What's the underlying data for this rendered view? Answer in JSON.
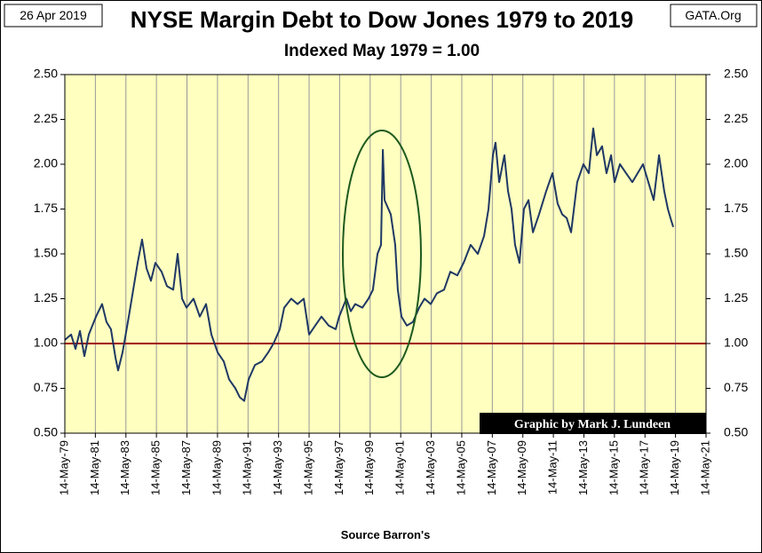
{
  "chart_data": {
    "type": "line",
    "title": "NYSE Margin Debt to Dow Jones 1979 to 2019",
    "subtitle": "Indexed May 1979 = 1.00",
    "date_label": "26 Apr 2019",
    "source_label": "GATA.Org",
    "xlabel": "Source Barron's",
    "credit": "Graphic by Mark J. Lundeen",
    "xlim": [
      1979.37,
      2021.37
    ],
    "xticks": [
      {
        "value": 1979.37,
        "label": "14-May-79"
      },
      {
        "value": 1981.37,
        "label": "14-May-81"
      },
      {
        "value": 1983.37,
        "label": "14-May-83"
      },
      {
        "value": 1985.37,
        "label": "14-May-85"
      },
      {
        "value": 1987.37,
        "label": "14-May-87"
      },
      {
        "value": 1989.37,
        "label": "14-May-89"
      },
      {
        "value": 1991.37,
        "label": "14-May-91"
      },
      {
        "value": 1993.37,
        "label": "14-May-93"
      },
      {
        "value": 1995.37,
        "label": "14-May-95"
      },
      {
        "value": 1997.37,
        "label": "14-May-97"
      },
      {
        "value": 1999.37,
        "label": "14-May-99"
      },
      {
        "value": 2001.37,
        "label": "14-May-01"
      },
      {
        "value": 2003.37,
        "label": "14-May-03"
      },
      {
        "value": 2005.37,
        "label": "14-May-05"
      },
      {
        "value": 2007.37,
        "label": "14-May-07"
      },
      {
        "value": 2009.37,
        "label": "14-May-09"
      },
      {
        "value": 2011.37,
        "label": "14-May-11"
      },
      {
        "value": 2013.37,
        "label": "14-May-13"
      },
      {
        "value": 2015.37,
        "label": "14-May-15"
      },
      {
        "value": 2017.37,
        "label": "14-May-17"
      },
      {
        "value": 2019.37,
        "label": "14-May-19"
      },
      {
        "value": 2021.37,
        "label": "14-May-21"
      }
    ],
    "ylim": [
      0.5,
      2.5
    ],
    "yticks": [
      {
        "value": 0.5,
        "label": "0.50"
      },
      {
        "value": 0.75,
        "label": "0.75"
      },
      {
        "value": 1,
        "label": "1.00"
      },
      {
        "value": 1.25,
        "label": "1.25"
      },
      {
        "value": 1.5,
        "label": "1.50"
      },
      {
        "value": 1.75,
        "label": "1.75"
      },
      {
        "value": 2,
        "label": "2.00"
      },
      {
        "value": 2.25,
        "label": "2.25"
      },
      {
        "value": 2.5,
        "label": "2.50"
      }
    ],
    "y2lim": [
      0.5,
      2.5
    ],
    "y2ticks": [
      {
        "value": 0.5,
        "label": "0.50"
      },
      {
        "value": 0.75,
        "label": "0.75"
      },
      {
        "value": 1,
        "label": "1.00"
      },
      {
        "value": 1.25,
        "label": "1.25"
      },
      {
        "value": 1.5,
        "label": "1.50"
      },
      {
        "value": 1.75,
        "label": "1.75"
      },
      {
        "value": 2,
        "label": "2.00"
      },
      {
        "value": 2.25,
        "label": "2.25"
      },
      {
        "value": 2.5,
        "label": "2.50"
      }
    ],
    "grid": "x",
    "hline": {
      "value": 1,
      "color": "#a00000"
    },
    "x": [
      1979.37,
      1979.78,
      1980.07,
      1980.36,
      1980.65,
      1980.94,
      1981.41,
      1981.81,
      1982.1,
      1982.39,
      1982.69,
      1982.86,
      1983.15,
      1983.56,
      1983.85,
      1984.14,
      1984.43,
      1984.72,
      1985.01,
      1985.3,
      1985.71,
      1986.06,
      1986.47,
      1986.76,
      1987.05,
      1987.34,
      1987.8,
      1988.21,
      1988.62,
      1988.97,
      1989.38,
      1989.78,
      1990.13,
      1990.54,
      1990.83,
      1991.12,
      1991.41,
      1991.82,
      1992.28,
      1992.69,
      1993.04,
      1993.45,
      1993.74,
      1994.2,
      1994.61,
      1995.02,
      1995.37,
      1995.77,
      1996.18,
      1996.65,
      1997.11,
      1997.34,
      1997.81,
      1998.1,
      1998.39,
      1998.86,
      1999.26,
      1999.55,
      1999.85,
      2000.08,
      2000.2,
      2000.31,
      2000.72,
      2001.01,
      2001.18,
      2001.42,
      2001.77,
      2002.17,
      2002.58,
      2002.93,
      2003.34,
      2003.74,
      2004.21,
      2004.62,
      2005.08,
      2005.49,
      2005.95,
      2006.42,
      2006.83,
      2007.12,
      2007.41,
      2007.58,
      2007.82,
      2008.16,
      2008.4,
      2008.63,
      2008.86,
      2009.15,
      2009.44,
      2009.74,
      2010.03,
      2010.43,
      2010.9,
      2011.31,
      2011.65,
      2011.95,
      2012.24,
      2012.53,
      2012.93,
      2013.34,
      2013.69,
      2013.98,
      2014.22,
      2014.56,
      2014.85,
      2015.15,
      2015.38,
      2015.73,
      2016.13,
      2016.54,
      2016.89,
      2017.24,
      2017.59,
      2017.94,
      2018.29,
      2018.63,
      2018.87,
      2019.04,
      2019.22
    ],
    "series": [
      {
        "color": "#1f3864",
        "values": [
          1.02,
          1.05,
          0.97,
          1.07,
          0.93,
          1.05,
          1.15,
          1.22,
          1.12,
          1.08,
          0.92,
          0.85,
          0.95,
          1.15,
          1.3,
          1.45,
          1.58,
          1.42,
          1.35,
          1.45,
          1.4,
          1.32,
          1.3,
          1.5,
          1.25,
          1.2,
          1.25,
          1.15,
          1.22,
          1.05,
          0.95,
          0.9,
          0.8,
          0.75,
          0.7,
          0.68,
          0.8,
          0.88,
          0.9,
          0.95,
          1.0,
          1.08,
          1.2,
          1.25,
          1.22,
          1.25,
          1.05,
          1.1,
          1.15,
          1.1,
          1.08,
          1.15,
          1.25,
          1.18,
          1.22,
          1.2,
          1.25,
          1.3,
          1.5,
          1.55,
          2.08,
          1.8,
          1.72,
          1.55,
          1.3,
          1.15,
          1.1,
          1.12,
          1.2,
          1.25,
          1.22,
          1.28,
          1.3,
          1.4,
          1.38,
          1.45,
          1.55,
          1.5,
          1.6,
          1.75,
          2.05,
          2.12,
          1.9,
          2.05,
          1.85,
          1.75,
          1.55,
          1.45,
          1.75,
          1.8,
          1.62,
          1.72,
          1.85,
          1.95,
          1.78,
          1.72,
          1.7,
          1.62,
          1.9,
          2.0,
          1.95,
          2.2,
          2.05,
          2.1,
          1.95,
          2.05,
          1.9,
          2.0,
          1.95,
          1.9,
          1.95,
          2.0,
          1.9,
          1.8,
          2.05,
          1.85,
          1.75,
          1.7,
          1.65
        ]
      }
    ]
  }
}
